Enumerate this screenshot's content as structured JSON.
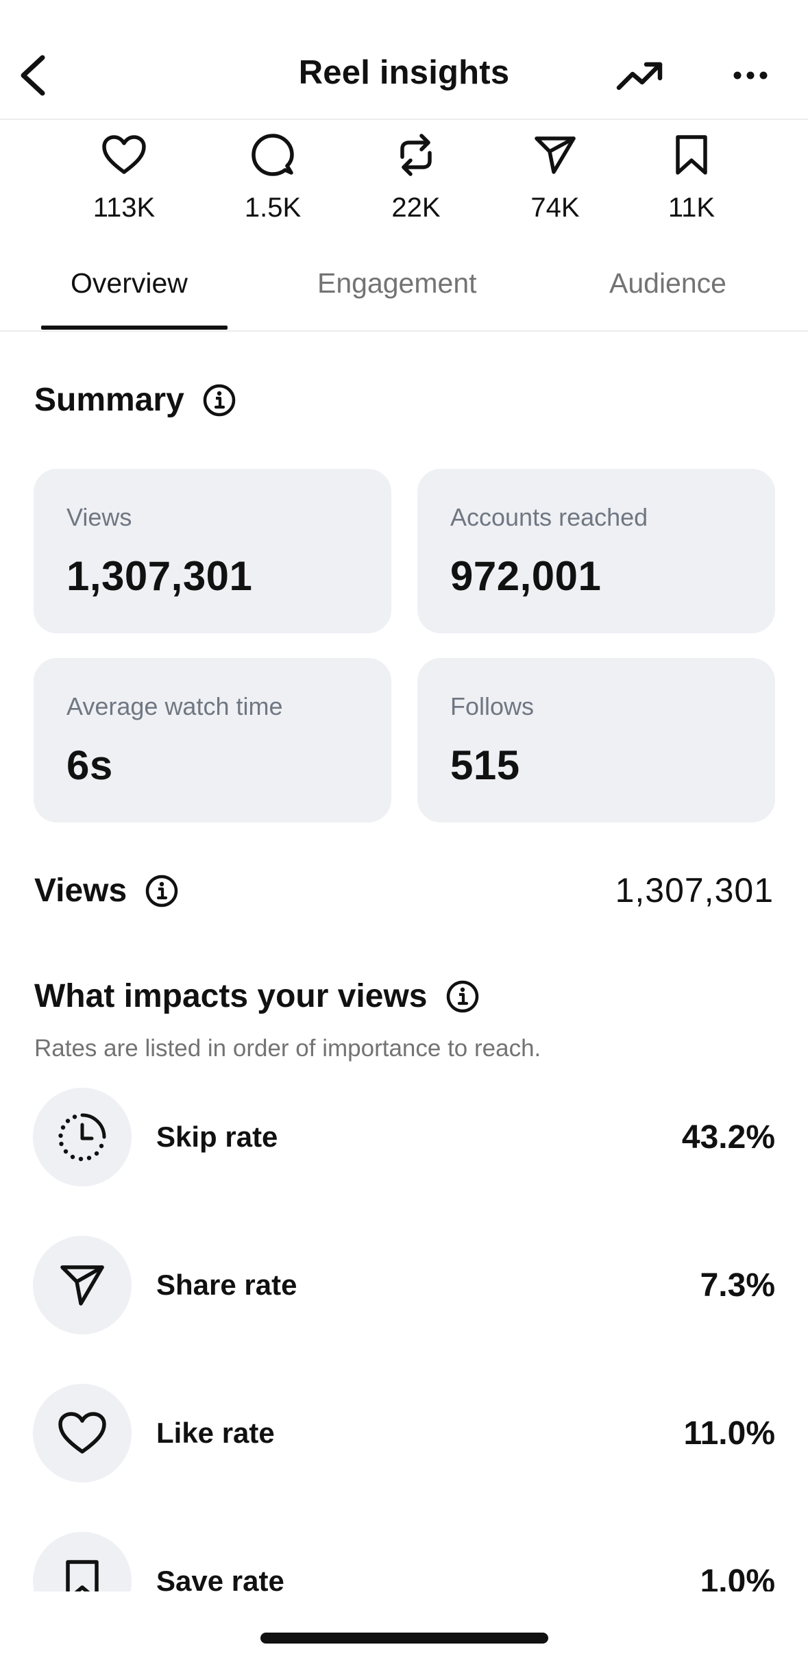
{
  "header": {
    "title": "Reel insights",
    "back_icon": "chevron-left-icon",
    "trend_icon": "trending-up-icon",
    "more_icon": "ellipsis-icon"
  },
  "stats": [
    {
      "icon": "heart-icon",
      "value": "113K"
    },
    {
      "icon": "comment-icon",
      "value": "1.5K"
    },
    {
      "icon": "repost-icon",
      "value": "22K"
    },
    {
      "icon": "send-icon",
      "value": "74K"
    },
    {
      "icon": "bookmark-icon",
      "value": "11K"
    }
  ],
  "tabs": [
    {
      "label": "Overview",
      "active": true
    },
    {
      "label": "Engagement",
      "active": false
    },
    {
      "label": "Audience",
      "active": false
    }
  ],
  "summary": {
    "title": "Summary",
    "cards": [
      {
        "label": "Views",
        "value": "1,307,301"
      },
      {
        "label": "Accounts reached",
        "value": "972,001"
      },
      {
        "label": "Average watch time",
        "value": "6s"
      },
      {
        "label": "Follows",
        "value": "515"
      }
    ]
  },
  "views": {
    "title": "Views",
    "value": "1,307,301"
  },
  "impacts": {
    "title": "What impacts your views",
    "subtitle": "Rates are listed in order of importance to reach.",
    "rows": [
      {
        "icon": "dotted-clock-icon",
        "label": "Skip rate",
        "value": "43.2%"
      },
      {
        "icon": "send-icon",
        "label": "Share rate",
        "value": "7.3%"
      },
      {
        "icon": "heart-icon",
        "label": "Like rate",
        "value": "11.0%"
      },
      {
        "icon": "bookmark-icon",
        "label": "Save rate",
        "value": "1.0%"
      }
    ]
  },
  "colors": {
    "text": "#111111",
    "muted": "#737373",
    "card_bg": "#eff0f4",
    "divider": "#ececec"
  }
}
